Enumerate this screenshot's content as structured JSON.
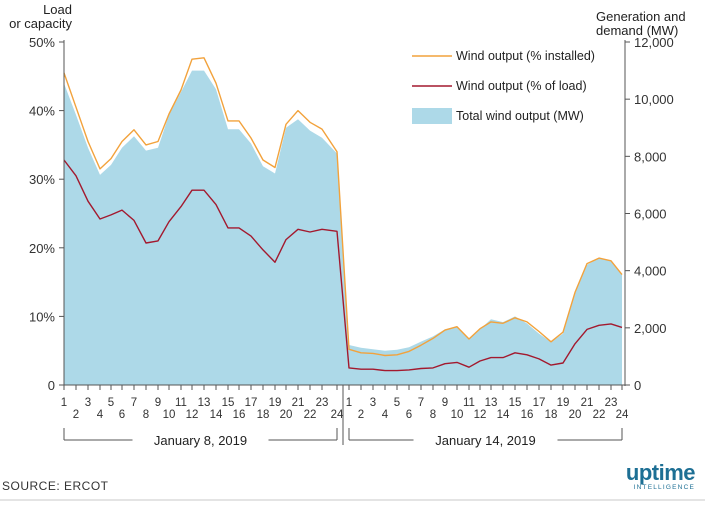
{
  "left_axis_title": [
    "Load",
    "or capacity"
  ],
  "right_axis_title": [
    "Generation and",
    "demand (MW)"
  ],
  "source": "SOURCE: ERCOT",
  "logo": {
    "main": "uptime",
    "sub": "INTELLIGENCE"
  },
  "colors": {
    "area": "#add9e8",
    "orange": "#f2a23c",
    "red": "#a3192e",
    "axis": "#555555",
    "logo": "#1d6f94"
  },
  "chart_data": {
    "type": "line",
    "categories": [
      "1",
      "2",
      "3",
      "4",
      "5",
      "6",
      "7",
      "8",
      "9",
      "10",
      "11",
      "12",
      "13",
      "14",
      "15",
      "16",
      "17",
      "18",
      "19",
      "20",
      "21",
      "22",
      "23",
      "24",
      "1",
      "2",
      "3",
      "4",
      "5",
      "6",
      "7",
      "8",
      "9",
      "10",
      "11",
      "12",
      "13",
      "14",
      "15",
      "16",
      "17",
      "18",
      "19",
      "20",
      "21",
      "22",
      "23",
      "24"
    ],
    "groups": [
      {
        "label": "January 8, 2019",
        "start": 0,
        "end": 23
      },
      {
        "label": "January 14, 2019",
        "start": 24,
        "end": 47
      }
    ],
    "y_left": {
      "ylim": [
        0,
        50
      ],
      "ticks": [
        0,
        10,
        20,
        30,
        40,
        50
      ],
      "tick_labels": [
        "0",
        "10%",
        "20%",
        "30%",
        "40%",
        "50%"
      ]
    },
    "y_right": {
      "ylim": [
        0,
        12000
      ],
      "ticks": [
        0,
        2000,
        4000,
        6000,
        8000,
        10000,
        12000
      ],
      "tick_labels": [
        "0",
        "2,000",
        "4,000",
        "6,000",
        "8,000",
        "10,000",
        "12,000"
      ]
    },
    "series": [
      {
        "name": "Total wind output (MW)",
        "type": "area",
        "axis": "right",
        "color": "#add9e8",
        "values": [
          10550,
          9450,
          8300,
          7350,
          7700,
          8300,
          8700,
          8200,
          8300,
          9450,
          10250,
          11000,
          11000,
          10350,
          8950,
          8950,
          8450,
          7650,
          7400,
          9000,
          9300,
          8900,
          8650,
          8100,
          1400,
          1300,
          1250,
          1200,
          1230,
          1320,
          1520,
          1700,
          1950,
          2050,
          1600,
          1950,
          2300,
          2200,
          2400,
          2150,
          1800,
          1500,
          1800,
          3250,
          4200,
          4450,
          4350,
          3850
        ]
      },
      {
        "name": "Wind output (% installed)",
        "type": "line",
        "axis": "left",
        "color": "#f2a23c",
        "values": [
          45.5,
          40.5,
          35.5,
          31.5,
          33,
          35.5,
          37.2,
          35.0,
          35.5,
          39.5,
          43,
          47.5,
          47.7,
          44,
          38.5,
          38.5,
          36,
          32.8,
          31.7,
          38,
          40,
          38.3,
          37.3,
          34,
          5.2,
          4.7,
          4.6,
          4.3,
          4.4,
          4.9,
          5.8,
          6.8,
          8.0,
          8.5,
          6.7,
          8.2,
          9.2,
          9.0,
          9.8,
          9.2,
          7.8,
          6.3,
          7.7,
          13.5,
          17.7,
          18.5,
          18.1,
          16.1
        ]
      },
      {
        "name": "Wind output (% of load)",
        "type": "line",
        "axis": "left",
        "color": "#a3192e",
        "values": [
          32.8,
          30.5,
          26.8,
          24.2,
          24.8,
          25.5,
          24.0,
          20.7,
          21.0,
          23.8,
          26.0,
          28.4,
          28.4,
          26.3,
          22.9,
          22.9,
          21.7,
          19.7,
          17.9,
          21.2,
          22.7,
          22.3,
          22.7,
          22.4,
          2.5,
          2.3,
          2.3,
          2.1,
          2.1,
          2.2,
          2.4,
          2.5,
          3.1,
          3.3,
          2.6,
          3.5,
          4.0,
          4.0,
          4.7,
          4.4,
          3.8,
          2.9,
          3.2,
          6.0,
          8.1,
          8.7,
          8.9,
          8.4
        ]
      }
    ],
    "legend": {
      "position": "top-right",
      "items": [
        {
          "label": "Wind output (% installed)",
          "kind": "line",
          "color": "#f2a23c"
        },
        {
          "label": "Wind output (% of load)",
          "kind": "line",
          "color": "#a3192e"
        },
        {
          "label": "Total wind output (MW)",
          "kind": "area",
          "color": "#add9e8"
        }
      ]
    }
  }
}
